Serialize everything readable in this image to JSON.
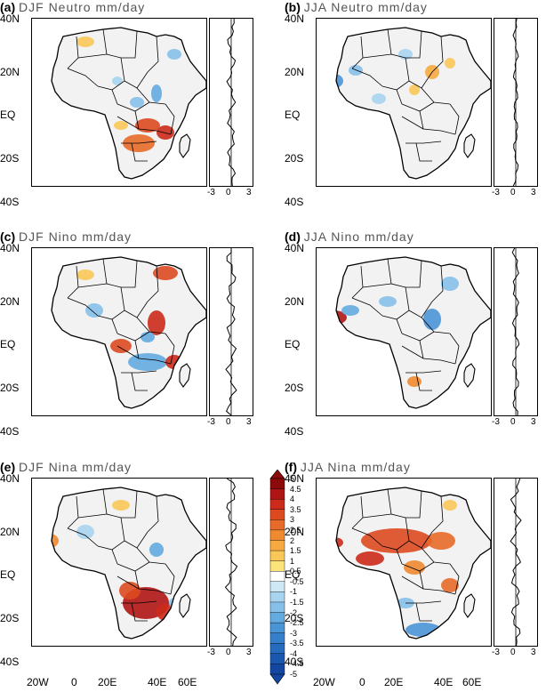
{
  "panels": [
    {
      "letter": "(a)",
      "title": "DJF  Neutro  mm/day",
      "id": "a"
    },
    {
      "letter": "(b)",
      "title": "JJA  Neutro  mm/day",
      "id": "b"
    },
    {
      "letter": "(c)",
      "title": "DJF  Nino  mm/day",
      "id": "c"
    },
    {
      "letter": "(d)",
      "title": "JJA  Nino  mm/day",
      "id": "d"
    },
    {
      "letter": "(e)",
      "title": "DJF  Nina  mm/day",
      "id": "e"
    },
    {
      "letter": "(f)",
      "title": "JJA  Nina  mm/day",
      "id": "f"
    }
  ],
  "lat_ticks": [
    "40N",
    "20N",
    "EQ",
    "20S",
    "40S"
  ],
  "lon_ticks": [
    "20W",
    "0",
    "20E",
    "40E",
    "60E"
  ],
  "side_ticks": [
    "-3",
    "0",
    "3"
  ],
  "colorbar": {
    "labels": [
      "5",
      "4.5",
      "4",
      "3.5",
      "3",
      "2.5",
      "2",
      "1.5",
      "1",
      "0.5",
      "-0.5",
      "-1",
      "-1.5",
      "-2",
      "-2.5",
      "-3",
      "-3.5",
      "-4",
      "-4.5",
      "-5"
    ],
    "colors": [
      "#8c0a0a",
      "#b01515",
      "#cc2a1a",
      "#dd4a20",
      "#e86a28",
      "#f08a30",
      "#f6aa40",
      "#f9c858",
      "#fbe47a",
      "#ffffff",
      "#cfe8f5",
      "#a9d4ef",
      "#86c0e8",
      "#64abe0",
      "#4a95d6",
      "#3680cb",
      "#256cbf",
      "#1a58b0",
      "#1246a0"
    ]
  },
  "colors": {
    "positive": "#e0502a",
    "negative": "#3b8ee0",
    "coast": "#000000"
  }
}
